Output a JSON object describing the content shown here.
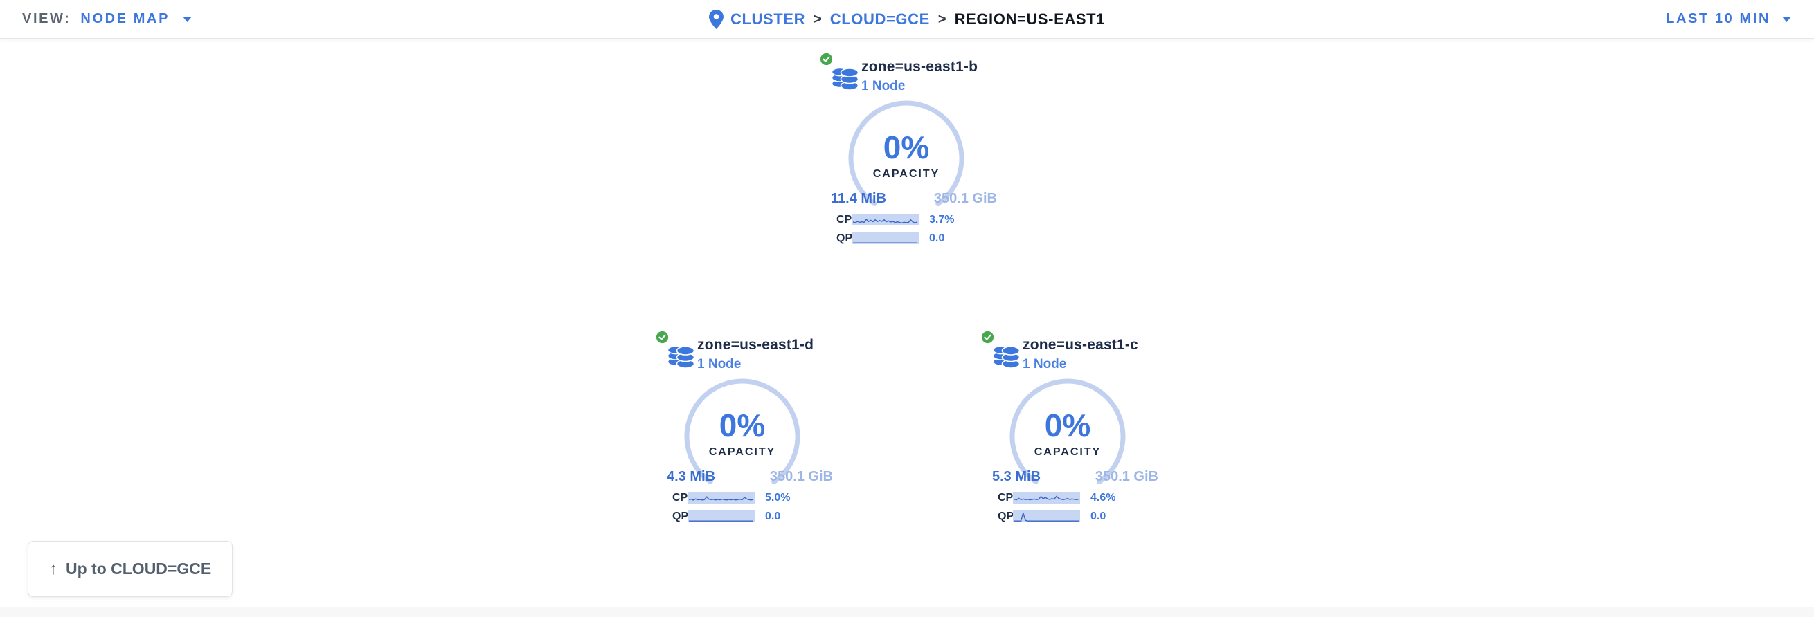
{
  "header": {
    "view_label": "VIEW:",
    "view_value": "NODE MAP",
    "breadcrumb": {
      "separator": ">",
      "items": [
        {
          "label": "CLUSTER"
        },
        {
          "label": "CLOUD=GCE"
        },
        {
          "label": "REGION=US-EAST1"
        }
      ]
    },
    "time_range": "LAST 10 MIN"
  },
  "colors": {
    "accent_blue": "#3d76dc",
    "node_count_blue": "#4a80e2",
    "capacity_used_blue": "#3a6fd2",
    "capacity_total_blue": "#9db6e6",
    "gauge_arc": "#c2d1ef",
    "sparkline_bg": "#c6d6f3",
    "sparkline_line": "#3c63c8",
    "dark_navy": "#1d2d49",
    "status_green": "#47a74f"
  },
  "zones": [
    {
      "title": "zone=us-east1-b",
      "subtitle": "1 Node",
      "status": "healthy",
      "capacity_pct": "0%",
      "capacity_label": "CAPACITY",
      "capacity_used": "11.4 MiB",
      "capacity_total": "350.1 GiB",
      "metrics": [
        {
          "label": "CPU",
          "value": "3.7%",
          "spark": [
            0.25,
            0.18,
            0.32,
            0.2,
            0.28,
            0.22,
            0.55,
            0.3,
            0.45,
            0.28,
            0.5,
            0.3,
            0.42,
            0.32,
            0.5,
            0.28,
            0.38,
            0.25,
            0.32,
            0.18,
            0.28,
            0.2,
            0.15,
            0.22,
            0.18,
            0.2,
            0.5,
            0.25,
            0.15,
            0.28
          ]
        },
        {
          "label": "QPS",
          "value": "0.0",
          "spark": [
            0,
            0,
            0,
            0,
            0,
            0,
            0,
            0,
            0,
            0,
            0,
            0,
            0,
            0,
            0,
            0,
            0,
            0,
            0,
            0,
            0,
            0,
            0,
            0,
            0,
            0,
            0,
            0,
            0,
            0
          ]
        }
      ]
    },
    {
      "title": "zone=us-east1-d",
      "subtitle": "1 Node",
      "status": "healthy",
      "capacity_pct": "0%",
      "capacity_label": "CAPACITY",
      "capacity_used": "4.3 MiB",
      "capacity_total": "350.1 GiB",
      "metrics": [
        {
          "label": "CPU",
          "value": "5.0%",
          "spark": [
            0.3,
            0.35,
            0.25,
            0.38,
            0.28,
            0.32,
            0.26,
            0.3,
            0.62,
            0.35,
            0.3,
            0.34,
            0.26,
            0.32,
            0.28,
            0.35,
            0.3,
            0.26,
            0.32,
            0.28,
            0.34,
            0.26,
            0.3,
            0.35,
            0.28,
            0.55,
            0.38,
            0.3,
            0.26,
            0.32
          ]
        },
        {
          "label": "QPS",
          "value": "0.0",
          "spark": [
            0,
            0,
            0,
            0,
            0,
            0,
            0,
            0,
            0,
            0,
            0,
            0,
            0,
            0,
            0,
            0,
            0,
            0,
            0,
            0,
            0,
            0,
            0,
            0,
            0,
            0,
            0,
            0,
            0,
            0
          ]
        }
      ]
    },
    {
      "title": "zone=us-east1-c",
      "subtitle": "1 Node",
      "status": "healthy",
      "capacity_pct": "0%",
      "capacity_label": "CAPACITY",
      "capacity_used": "5.3 MiB",
      "capacity_total": "350.1 GiB",
      "metrics": [
        {
          "label": "CPU",
          "value": "4.6%",
          "spark": [
            0.35,
            0.28,
            0.45,
            0.3,
            0.38,
            0.3,
            0.35,
            0.28,
            0.32,
            0.38,
            0.3,
            0.36,
            0.65,
            0.4,
            0.55,
            0.38,
            0.32,
            0.42,
            0.35,
            0.68,
            0.45,
            0.35,
            0.3,
            0.36,
            0.42,
            0.32,
            0.38,
            0.34,
            0.3,
            0.36
          ]
        },
        {
          "label": "QPS",
          "value": "0.0",
          "spark": [
            0,
            0,
            0,
            0,
            0.9,
            0.08,
            0,
            0,
            0,
            0,
            0,
            0,
            0,
            0,
            0,
            0,
            0,
            0,
            0,
            0,
            0,
            0,
            0,
            0,
            0,
            0,
            0,
            0,
            0,
            0
          ]
        }
      ]
    }
  ],
  "up_button": {
    "icon": "↑",
    "label": "Up to CLOUD=GCE"
  }
}
